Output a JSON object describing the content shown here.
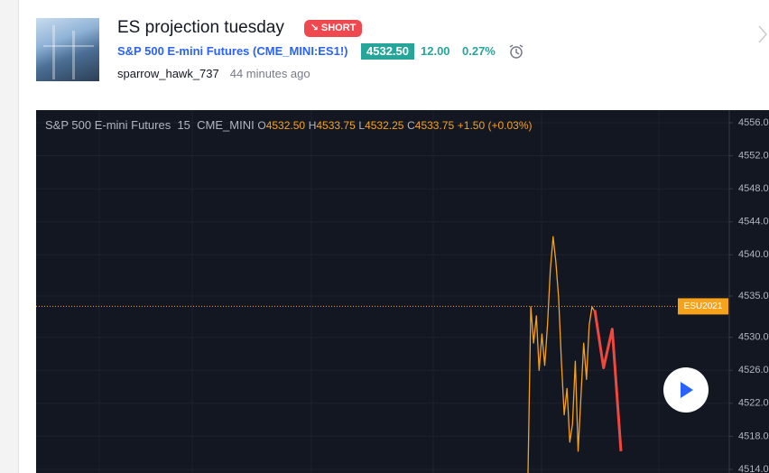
{
  "header": {
    "title": "ES projection tuesday",
    "badge": "SHORT",
    "symbol_name": "S&P 500 E-mini Futures",
    "symbol_code": "CME_MINI:ES1!",
    "price": "4532.50",
    "change": "12.00",
    "change_pct": "0.27%",
    "author": "sparrow_hawk_737",
    "time_ago": "44 minutes ago"
  },
  "legend": {
    "name": "S&P 500 E-mini Futures",
    "interval": "15",
    "exchange": "CME_MINI",
    "ohlc": [
      {
        "key": "O",
        "value": "4532.50"
      },
      {
        "key": "H",
        "value": "4533.75"
      },
      {
        "key": "L",
        "value": "4532.25"
      },
      {
        "key": "C",
        "value": "4533.75"
      }
    ],
    "change": "+1.50 (+0.03%)"
  },
  "chart": {
    "type": "line",
    "ylim": [
      4557.53,
      4513.56
    ],
    "yticks": [
      {
        "value": 4556,
        "label": "4556.0"
      },
      {
        "value": 4552,
        "label": "4552.0"
      },
      {
        "value": 4548,
        "label": "4548.0"
      },
      {
        "value": 4544,
        "label": "4544.0"
      },
      {
        "value": 4540,
        "label": "4540.0"
      },
      {
        "value": 4535,
        "label": "4535.0"
      },
      {
        "value": 4530,
        "label": "4530.0"
      },
      {
        "value": 4526,
        "label": "4526.0"
      },
      {
        "value": 4522,
        "label": "4522.0"
      },
      {
        "value": 4518,
        "label": "4518.0"
      },
      {
        "value": 4514,
        "label": "4514.0"
      }
    ],
    "last_price": 4533.75,
    "last_label": "ESU2021",
    "series": [
      {
        "color": "#f7a21b",
        "values": [
          4513.5,
          4533.7,
          4529.3,
          4532.6,
          4526.0,
          4530.4,
          4526.6,
          4531.5,
          4538.1,
          4542.2,
          4539.2,
          4534.8,
          4527.1,
          4520.6,
          4523.8,
          4517.3,
          4519.5,
          4527.1,
          4516.2,
          4522.7,
          4529.3,
          4524.9,
          4531.5,
          4533.7,
          4533.1
        ]
      },
      {
        "color": "#f0483e",
        "values": [
          4533.3,
          4526.3,
          4531.0,
          4516.2
        ]
      }
    ]
  }
}
